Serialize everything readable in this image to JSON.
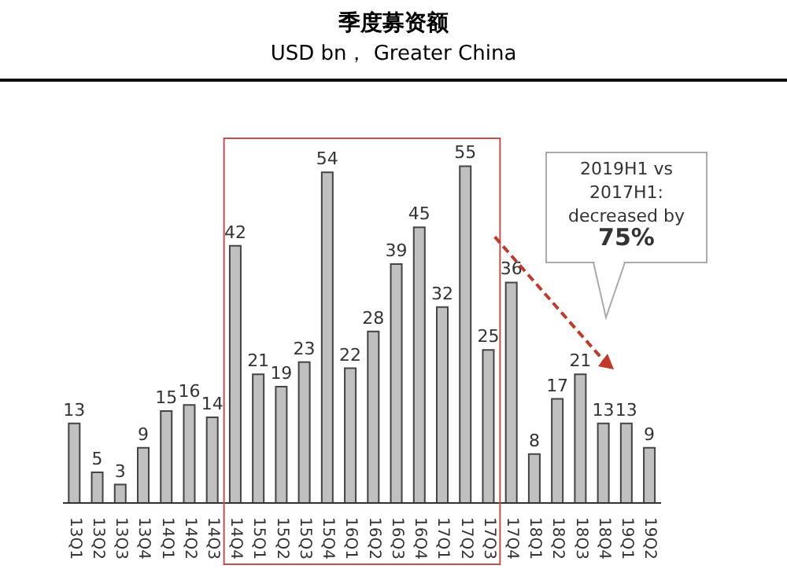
{
  "chart_data": {
    "type": "bar",
    "title": "季度募资额",
    "subtitle": "USD bn， Greater China",
    "categories": [
      "13Q1",
      "13Q2",
      "13Q3",
      "13Q4",
      "14Q1",
      "14Q2",
      "14Q3",
      "14Q4",
      "15Q1",
      "15Q2",
      "15Q3",
      "15Q4",
      "16Q1",
      "16Q2",
      "16Q3",
      "16Q4",
      "17Q1",
      "17Q2",
      "17Q3",
      "17Q4",
      "18Q1",
      "18Q2",
      "18Q3",
      "18Q4",
      "19Q1",
      "19Q2"
    ],
    "values": [
      13,
      5,
      3,
      9,
      15,
      16,
      14,
      42,
      21,
      19,
      23,
      54,
      22,
      28,
      39,
      45,
      32,
      55,
      25,
      36,
      8,
      17,
      21,
      13,
      13,
      9
    ],
    "color": "#c0c0c0",
    "data_labels": true,
    "annotations": [
      "2019H1 vs\n2017H1:\ndecreased by\n75%"
    ]
  }
}
